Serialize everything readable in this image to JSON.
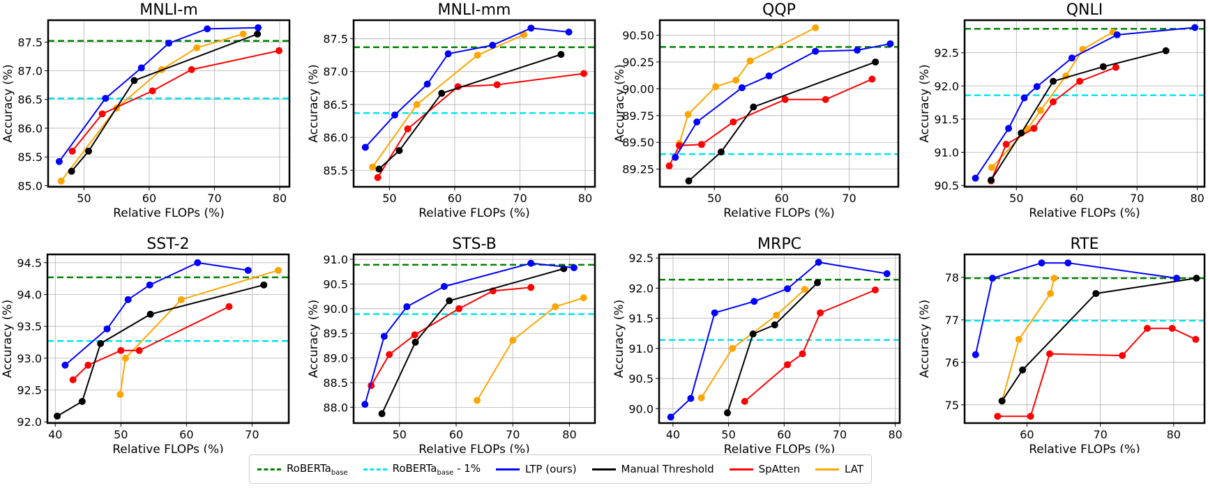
{
  "common": {
    "xlabel": "Relative FLOPs (%)",
    "ylabel": "Accuracy (%)"
  },
  "legend": [
    {
      "label": "RoBERTa",
      "sub": "base",
      "suffix": "",
      "color": "#008000",
      "style": "dashed"
    },
    {
      "label": "RoBERTa",
      "sub": "base",
      "suffix": " - 1%",
      "color": "#00e5ee",
      "style": "dashed"
    },
    {
      "label": "LTP (ours)",
      "color": "#0000ff",
      "style": "solid"
    },
    {
      "label": "Manual Threshold",
      "color": "#000000",
      "style": "solid"
    },
    {
      "label": "SpAtten",
      "color": "#ff0000",
      "style": "solid"
    },
    {
      "label": "LAT",
      "color": "#ffa500",
      "style": "solid"
    }
  ],
  "chart_data": [
    {
      "type": "line",
      "title": "MNLI-m",
      "xlim": [
        44.5,
        81.5
      ],
      "ylim": [
        84.98,
        87.88
      ],
      "xticks": [
        "50",
        "60",
        "70",
        "80"
      ],
      "yticks": [
        "85.0",
        "85.5",
        "86.0",
        "86.5",
        "87.0",
        "87.5"
      ],
      "grid": true,
      "baseline": 87.52,
      "baseline_minus_1": 86.52,
      "series": [
        {
          "name": "LTP (ours)",
          "x": [
            46.2,
            53.3,
            58.8,
            63,
            68.9,
            76.7
          ],
          "y": [
            85.42,
            86.52,
            87.05,
            87.48,
            87.73,
            87.75
          ]
        },
        {
          "name": "Manual Threshold",
          "x": [
            48.1,
            50.7,
            57.7,
            76.6
          ],
          "y": [
            85.25,
            85.6,
            86.83,
            87.64
          ]
        },
        {
          "name": "SpAtten",
          "x": [
            48.2,
            52.8,
            60.5,
            66.5,
            79.9
          ],
          "y": [
            85.6,
            86.25,
            86.65,
            87.02,
            87.35
          ]
        },
        {
          "name": "LAT",
          "x": [
            46.5,
            55,
            61.9,
            67.3,
            74.4
          ],
          "y": [
            85.08,
            86.35,
            87.02,
            87.4,
            87.64
          ]
        }
      ]
    },
    {
      "type": "line",
      "title": "MNLI-mm",
      "xlim": [
        44.5,
        81.5
      ],
      "ylim": [
        85.25,
        87.78
      ],
      "xticks": [
        "50",
        "60",
        "70",
        "80"
      ],
      "yticks": [
        "85.5",
        "86.0",
        "86.5",
        "87.0",
        "87.5"
      ],
      "grid": true,
      "baseline": 87.37,
      "baseline_minus_1": 86.37,
      "series": [
        {
          "name": "LTP (ours)",
          "x": [
            46.3,
            50.8,
            55.8,
            59,
            65.8,
            71.7,
            77.5
          ],
          "y": [
            85.85,
            86.34,
            86.81,
            87.27,
            87.4,
            87.66,
            87.6
          ]
        },
        {
          "name": "Manual Threshold",
          "x": [
            48.4,
            51.5,
            58,
            76.3
          ],
          "y": [
            85.52,
            85.8,
            86.67,
            87.26
          ]
        },
        {
          "name": "SpAtten",
          "x": [
            48.2,
            52.8,
            60.5,
            66.5,
            79.8
          ],
          "y": [
            85.39,
            86.13,
            86.77,
            86.8,
            86.97
          ]
        },
        {
          "name": "LAT",
          "x": [
            47.4,
            54.2,
            63.5,
            70.6
          ],
          "y": [
            85.55,
            86.5,
            87.25,
            87.56
          ]
        }
      ]
    },
    {
      "type": "line",
      "title": "QQP",
      "xlim": [
        41.9,
        77.3
      ],
      "ylim": [
        89.085,
        90.64
      ],
      "xticks": [
        "50",
        "60",
        "70"
      ],
      "yticks": [
        "89.25",
        "89.50",
        "89.75",
        "90.00",
        "90.25",
        "90.50"
      ],
      "grid": true,
      "baseline": 90.39,
      "baseline_minus_1": 89.39,
      "series": [
        {
          "name": "LTP (ours)",
          "x": [
            44.2,
            47.4,
            54.1,
            58.1,
            65,
            71.2,
            76.1
          ],
          "y": [
            89.36,
            89.69,
            90.01,
            90.12,
            90.35,
            90.36,
            90.42
          ]
        },
        {
          "name": "Manual Threshold",
          "x": [
            46.2,
            51,
            55.8,
            73.9
          ],
          "y": [
            89.14,
            89.41,
            89.83,
            90.25
          ]
        },
        {
          "name": "SpAtten",
          "x": [
            43.3,
            44.8,
            48.1,
            52.8,
            60.5,
            66.5,
            73.4
          ],
          "y": [
            89.28,
            89.47,
            89.48,
            89.69,
            89.9,
            89.9,
            90.09
          ]
        },
        {
          "name": "LAT",
          "x": [
            44.8,
            46.1,
            50.2,
            53.2,
            55.3,
            65
          ],
          "y": [
            89.49,
            89.76,
            90.02,
            90.08,
            90.26,
            90.57
          ]
        }
      ]
    },
    {
      "type": "line",
      "title": "QNLI",
      "xlim": [
        41.4,
        81.2
      ],
      "ylim": [
        90.48,
        92.99
      ],
      "xticks": [
        "50",
        "60",
        "70",
        "80"
      ],
      "yticks": [
        "90.5",
        "91.0",
        "91.5",
        "92.0",
        "92.5"
      ],
      "grid": true,
      "baseline": 92.86,
      "baseline_minus_1": 91.86,
      "series": [
        {
          "name": "LTP (ours)",
          "x": [
            43.2,
            48.7,
            51.3,
            53.4,
            59.2,
            66.7,
            79.6
          ],
          "y": [
            90.61,
            91.36,
            91.82,
            91.99,
            92.42,
            92.77,
            92.88
          ]
        },
        {
          "name": "Manual Threshold",
          "x": [
            45.8,
            50.8,
            56.1,
            64.4,
            74.8
          ],
          "y": [
            90.58,
            91.29,
            92.07,
            92.29,
            92.53
          ]
        },
        {
          "name": "SpAtten",
          "x": [
            45.8,
            48.3,
            52.9,
            56.1,
            60.5,
            66.5
          ],
          "y": [
            90.57,
            91.12,
            91.36,
            91.76,
            92.07,
            92.28
          ]
        },
        {
          "name": "LAT",
          "x": [
            45.9,
            51.8,
            54,
            58.2,
            61,
            66
          ],
          "y": [
            90.77,
            91.35,
            91.63,
            92.15,
            92.55,
            92.81
          ]
        }
      ]
    },
    {
      "type": "line",
      "title": "SST-2",
      "xlim": [
        38.8,
        75.6
      ],
      "ylim": [
        91.98,
        94.63
      ],
      "xticks": [
        "40",
        "50",
        "60",
        "70"
      ],
      "yticks": [
        "92.0",
        "92.5",
        "93.0",
        "93.5",
        "94.0",
        "94.5"
      ],
      "grid": true,
      "baseline": 94.27,
      "baseline_minus_1": 93.27,
      "series": [
        {
          "name": "LTP (ours)",
          "x": [
            41.5,
            47.9,
            51.1,
            54.4,
            61.7,
            69.4
          ],
          "y": [
            92.89,
            93.46,
            93.92,
            94.15,
            94.5,
            94.38
          ]
        },
        {
          "name": "Manual Threshold",
          "x": [
            40.3,
            44.1,
            46.9,
            54.5,
            71.8
          ],
          "y": [
            92.09,
            92.32,
            93.23,
            93.69,
            94.15
          ]
        },
        {
          "name": "SpAtten",
          "x": [
            42.7,
            45,
            50,
            52.8,
            66.5
          ],
          "y": [
            92.66,
            92.89,
            93.12,
            93.12,
            93.81
          ]
        },
        {
          "name": "LAT",
          "x": [
            49.9,
            50.7,
            59.2,
            74
          ],
          "y": [
            92.43,
            93,
            93.92,
            94.38
          ]
        }
      ]
    },
    {
      "type": "line",
      "title": "STS-B",
      "xlim": [
        41.9,
        84.5
      ],
      "ylim": [
        87.68,
        91.1
      ],
      "xticks": [
        "50",
        "60",
        "70",
        "80"
      ],
      "yticks": [
        "88.0",
        "88.5",
        "89.0",
        "89.5",
        "90.0",
        "90.5",
        "91.0"
      ],
      "grid": true,
      "baseline": 90.89,
      "baseline_minus_1": 89.89,
      "series": [
        {
          "name": "LTP (ours)",
          "x": [
            43.9,
            47.3,
            51.3,
            57.9,
            73.2,
            80.8
          ],
          "y": [
            88.06,
            89.44,
            90.04,
            90.45,
            90.92,
            90.83
          ]
        },
        {
          "name": "Manual Threshold",
          "x": [
            46.9,
            52.8,
            58.8,
            79
          ],
          "y": [
            87.87,
            89.32,
            90.16,
            90.81
          ]
        },
        {
          "name": "SpAtten",
          "x": [
            45,
            48.2,
            52.7,
            60.5,
            66.5,
            73.2
          ],
          "y": [
            88.44,
            89.07,
            89.47,
            90,
            90.36,
            90.43
          ]
        },
        {
          "name": "LAT",
          "x": [
            63.7,
            70,
            77.5,
            82.5
          ],
          "y": [
            88.14,
            89.36,
            90.04,
            90.22
          ]
        }
      ]
    },
    {
      "type": "line",
      "title": "MRPC",
      "xlim": [
        37.5,
        80.8
      ],
      "ylim": [
        89.76,
        92.56
      ],
      "xticks": [
        "40",
        "50",
        "60",
        "70",
        "80"
      ],
      "yticks": [
        "90.0",
        "90.5",
        "91.0",
        "91.5",
        "92.0",
        "92.5"
      ],
      "grid": true,
      "baseline": 92.14,
      "baseline_minus_1": 91.14,
      "series": [
        {
          "name": "LTP (ours)",
          "x": [
            39.6,
            43.2,
            47.5,
            54.6,
            60.6,
            66.2,
            78.5
          ],
          "y": [
            89.86,
            90.17,
            91.59,
            91.78,
            91.99,
            92.43,
            92.24
          ]
        },
        {
          "name": "Manual Threshold",
          "x": [
            49.8,
            54.4,
            58.3,
            66
          ],
          "y": [
            89.93,
            91.24,
            91.39,
            92.09
          ]
        },
        {
          "name": "SpAtten",
          "x": [
            52.9,
            60.6,
            63.3,
            66.5,
            76.4
          ],
          "y": [
            90.12,
            90.73,
            90.91,
            91.59,
            91.97
          ]
        },
        {
          "name": "LAT",
          "x": [
            45.1,
            50.7,
            58.6,
            63.7
          ],
          "y": [
            90.18,
            91,
            91.55,
            91.98
          ]
        }
      ]
    },
    {
      "type": "line",
      "title": "RTE",
      "xlim": [
        51.5,
        84.2
      ],
      "ylim": [
        74.57,
        78.54
      ],
      "xticks": [
        "60",
        "70",
        "80"
      ],
      "yticks": [
        "75",
        "76",
        "77",
        "78"
      ],
      "grid": true,
      "baseline": 77.98,
      "baseline_minus_1": 76.98,
      "series": [
        {
          "name": "LTP (ours)",
          "x": [
            53,
            55.3,
            62,
            65.6,
            80.4
          ],
          "y": [
            76.18,
            77.98,
            78.34,
            78.34,
            77.98
          ]
        },
        {
          "name": "Manual Threshold",
          "x": [
            56.6,
            59.4,
            69.4,
            83.1
          ],
          "y": [
            75.09,
            75.82,
            77.62,
            77.98
          ]
        },
        {
          "name": "SpAtten",
          "x": [
            56,
            60.5,
            63.1,
            73,
            76.4,
            79.8,
            83
          ],
          "y": [
            74.73,
            74.73,
            76.2,
            76.16,
            76.8,
            76.8,
            76.54
          ]
        },
        {
          "name": "LAT",
          "x": [
            56.6,
            58.9,
            63.2,
            63.7
          ],
          "y": [
            75.09,
            76.54,
            77.62,
            77.98
          ]
        }
      ]
    }
  ]
}
